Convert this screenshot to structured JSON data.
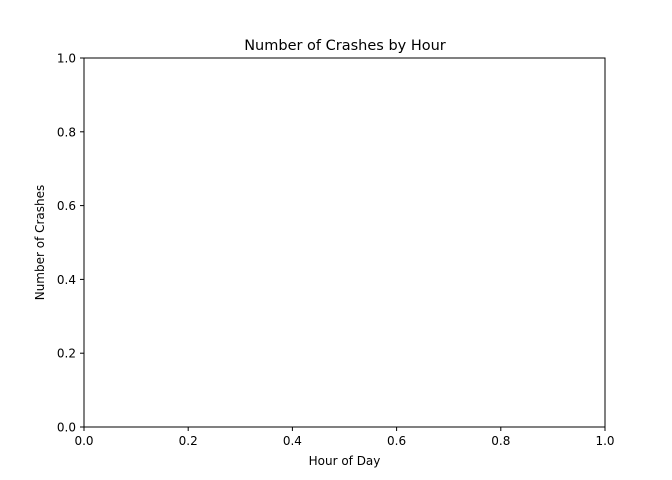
{
  "chart_data": {
    "type": "line",
    "title": "Number of Crashes by Hour",
    "xlabel": "Hour of Day",
    "ylabel": "Number of Crashes",
    "xlim": [
      0,
      1
    ],
    "ylim": [
      0,
      1
    ],
    "xticks": [
      "0.0",
      "0.2",
      "0.4",
      "0.6",
      "0.8",
      "1.0"
    ],
    "yticks": [
      "0.0",
      "0.2",
      "0.4",
      "0.6",
      "0.8",
      "1.0"
    ],
    "series": [],
    "grid": false
  }
}
